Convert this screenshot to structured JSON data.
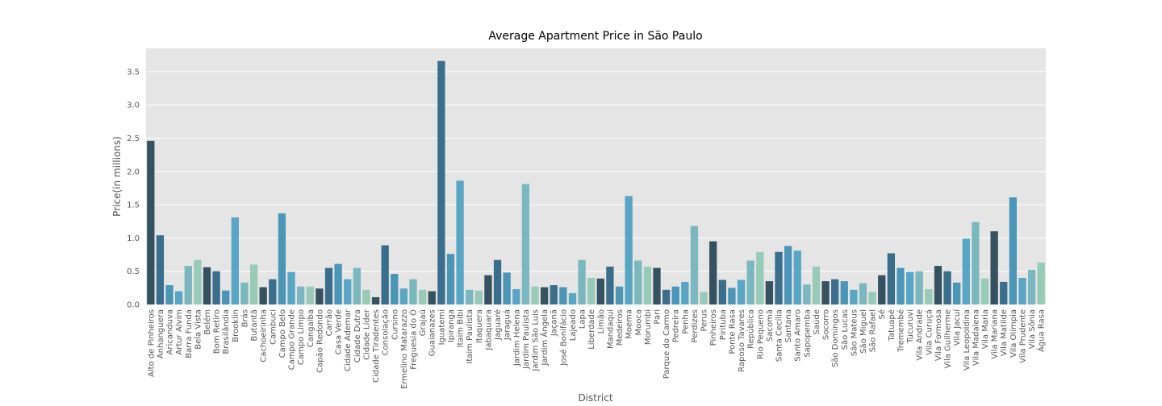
{
  "chart_data": {
    "type": "bar",
    "title": "Average Apartment Price in São Paulo",
    "x_label": "District",
    "y_label": "Price(in millions)",
    "categories": [
      "Alto de Pinheiros",
      "Anhanguera",
      "Aricanduva",
      "Artur Alvim",
      "Barra Funda",
      "Bela Vista",
      "Belém",
      "Bom Retiro",
      "Brasilândia",
      "Brooklin",
      "Brás",
      "Butantã",
      "Cachoeirinha",
      "Cambuci",
      "Campo Belo",
      "Campo Grande",
      "Campo Limpo",
      "Cangaíba",
      "Capão Redondo",
      "Carrão",
      "Casa Verde",
      "Cidade Ademar",
      "Cidade Dutra",
      "Cidade Líder",
      "Cidade Tiradentes",
      "Consolação",
      "Cursino",
      "Ermelino Matarazzo",
      "Freguesia do Ó",
      "Grajaú",
      "Guaianazes",
      "Iguatemi",
      "Ipiranga",
      "Itaim Bibi",
      "Itaim Paulista",
      "Itaquera",
      "Jabaquara",
      "Jaguaré",
      "Jaraguá",
      "Jardim Helena",
      "Jardim Paulista",
      "Jardim São Luis",
      "Jardim Ângela",
      "Jaçanã",
      "José Bonifácio",
      "Lajeado",
      "Lapa",
      "Liberdade",
      "Limão",
      "Mandaqui",
      "Medeiros",
      "Moema",
      "Mooca",
      "Morumbi",
      "Pari",
      "Parque do Carmo",
      "Pedreira",
      "Penha",
      "Perdizes",
      "Perus",
      "Pinheiros",
      "Pirituba",
      "Ponte Rasa",
      "Raposo Tavares",
      "República",
      "Rio Pequeno",
      "Sacomã",
      "Santa Cecília",
      "Santana",
      "Santo Amaro",
      "Sapopemba",
      "Saúde",
      "Socorro",
      "São Domingos",
      "São Lucas",
      "São Mateus",
      "São Miguel",
      "São Rafael",
      "Sé",
      "Tatuapé",
      "Tremembé",
      "Tucuruvi",
      "Vila Andrade",
      "Vila Curuçá",
      "Vila Formosa",
      "Vila Guilherme",
      "Vila Jacuí",
      "Vila Leopoldina",
      "Vila Madalena",
      "Vila Maria",
      "Vila Mariana",
      "Vila Matilde",
      "Vila Olímpia",
      "Vila Prudente",
      "Vila Sônia",
      "Água Rasa"
    ],
    "values": [
      2.46,
      1.04,
      0.29,
      0.2,
      0.58,
      0.67,
      0.56,
      0.5,
      0.21,
      1.31,
      0.33,
      0.6,
      0.26,
      0.38,
      1.37,
      0.49,
      0.27,
      0.27,
      0.24,
      0.55,
      0.61,
      0.38,
      0.55,
      0.22,
      0.11,
      0.89,
      0.46,
      0.24,
      0.38,
      0.22,
      0.2,
      3.66,
      0.76,
      1.86,
      0.22,
      0.21,
      0.44,
      0.67,
      0.48,
      0.23,
      1.81,
      0.27,
      0.26,
      0.29,
      0.26,
      0.17,
      0.67,
      0.4,
      0.39,
      0.57,
      0.27,
      1.63,
      0.66,
      0.57,
      0.55,
      0.22,
      0.27,
      0.34,
      1.18,
      0.19,
      0.95,
      0.37,
      0.25,
      0.37,
      0.66,
      0.79,
      0.35,
      0.79,
      0.88,
      0.81,
      0.3,
      0.57,
      0.35,
      0.38,
      0.35,
      0.22,
      0.32,
      0.19,
      0.44,
      0.77,
      0.55,
      0.49,
      0.5,
      0.23,
      0.58,
      0.5,
      0.33,
      0.99,
      1.24,
      0.39,
      1.1,
      0.34,
      1.61,
      0.4,
      0.52,
      0.63
    ],
    "colors": [
      "#36515f",
      "#3b6e8c",
      "#4b95b7",
      "#58a6c3",
      "#7bb7be",
      "#97cab7"
    ],
    "ylim": [
      0,
      3.85
    ],
    "yticks": [
      {
        "value": 0,
        "label": "0.0"
      },
      {
        "value": 0.5,
        "label": "0.5"
      },
      {
        "value": 1,
        "label": "1.0"
      },
      {
        "value": 1.5,
        "label": "1.5"
      },
      {
        "value": 2,
        "label": "2.0"
      },
      {
        "value": 2.5,
        "label": "2.5"
      },
      {
        "value": 3,
        "label": "3.0"
      },
      {
        "value": 3.5,
        "label": "3.5"
      }
    ],
    "grid": true
  }
}
